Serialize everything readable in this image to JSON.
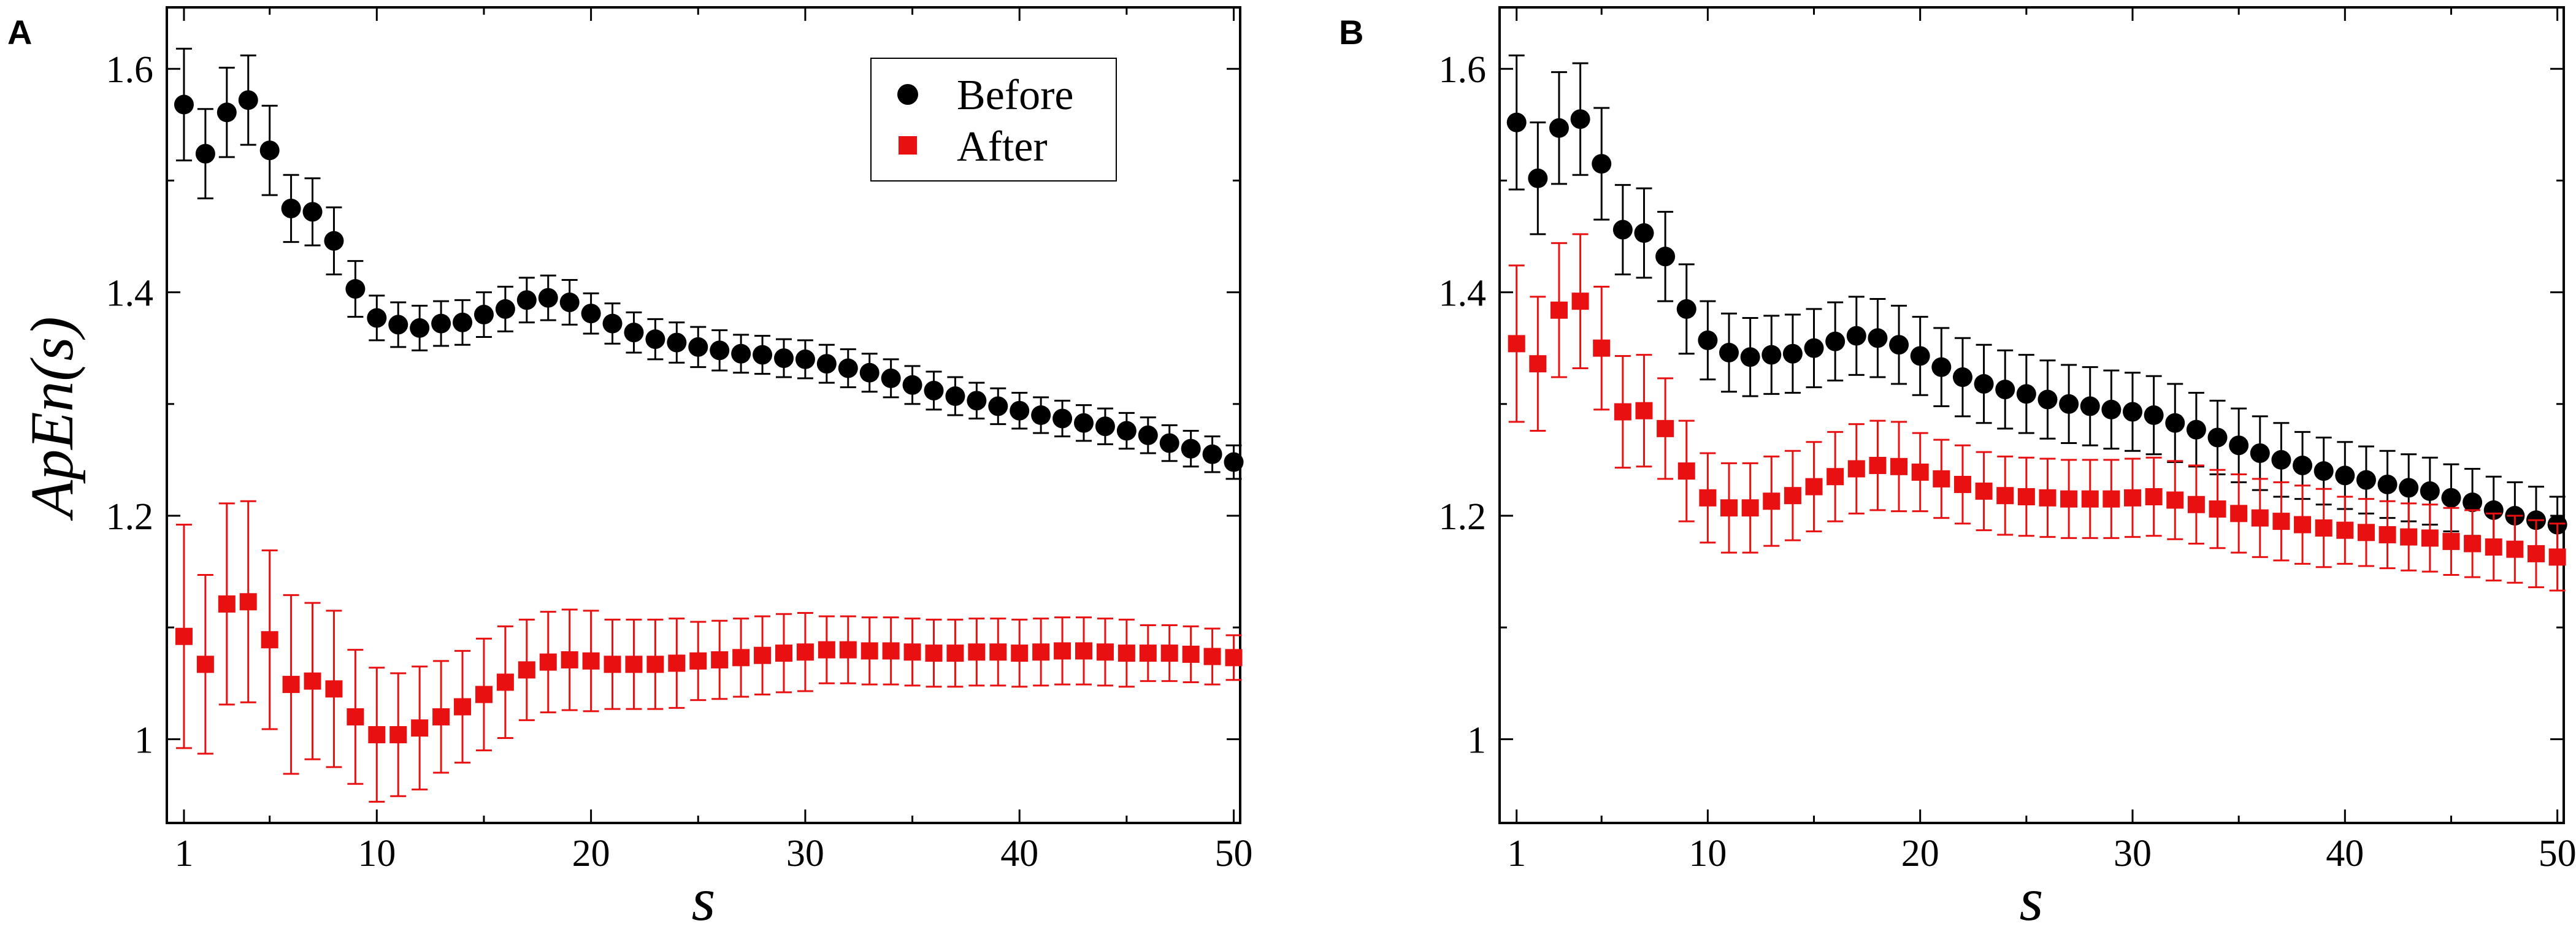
{
  "colors": {
    "before": "#000000",
    "after": "#e81010"
  },
  "chart_data": [
    {
      "panel": "A",
      "type": "scatter",
      "xlabel": "s",
      "ylabel": "ApEn(s)",
      "xlim": [
        0.2,
        50.3
      ],
      "ylim": [
        0.925,
        1.655
      ],
      "xticks": [
        1,
        10,
        20,
        30,
        40,
        50
      ],
      "yticks": [
        1,
        1.2,
        1.4,
        1.6
      ],
      "ytick_labels": [
        "1",
        "1.2",
        "1.4",
        "1.6"
      ],
      "legend": {
        "position": "top-right",
        "entries": [
          "Before",
          "After"
        ]
      },
      "x": [
        1,
        2,
        3,
        4,
        5,
        6,
        7,
        8,
        9,
        10,
        11,
        12,
        13,
        14,
        15,
        16,
        17,
        18,
        19,
        20,
        21,
        22,
        23,
        24,
        25,
        26,
        27,
        28,
        29,
        30,
        31,
        32,
        33,
        34,
        35,
        36,
        37,
        38,
        39,
        40,
        41,
        42,
        43,
        44,
        45,
        46,
        47,
        48,
        49,
        50
      ],
      "series": [
        {
          "name": "Before",
          "marker": "circle",
          "values": [
            1.568,
            1.524,
            1.561,
            1.572,
            1.527,
            1.475,
            1.472,
            1.446,
            1.403,
            1.377,
            1.371,
            1.368,
            1.372,
            1.373,
            1.38,
            1.385,
            1.393,
            1.395,
            1.391,
            1.381,
            1.372,
            1.364,
            1.358,
            1.355,
            1.351,
            1.348,
            1.345,
            1.344,
            1.341,
            1.34,
            1.336,
            1.332,
            1.328,
            1.323,
            1.317,
            1.312,
            1.307,
            1.303,
            1.298,
            1.294,
            1.29,
            1.287,
            1.283,
            1.28,
            1.276,
            1.272,
            1.265,
            1.26,
            1.255,
            1.248
          ],
          "errors": [
            0.05,
            0.04,
            0.04,
            0.04,
            0.04,
            0.03,
            0.03,
            0.03,
            0.025,
            0.02,
            0.02,
            0.02,
            0.02,
            0.02,
            0.02,
            0.02,
            0.02,
            0.02,
            0.02,
            0.018,
            0.018,
            0.018,
            0.018,
            0.018,
            0.018,
            0.018,
            0.017,
            0.017,
            0.017,
            0.017,
            0.017,
            0.017,
            0.017,
            0.017,
            0.017,
            0.017,
            0.017,
            0.016,
            0.016,
            0.016,
            0.016,
            0.016,
            0.016,
            0.016,
            0.016,
            0.016,
            0.016,
            0.016,
            0.016,
            0.015
          ]
        },
        {
          "name": "After",
          "marker": "square",
          "values": [
            1.092,
            1.067,
            1.121,
            1.123,
            1.089,
            1.049,
            1.052,
            1.045,
            1.02,
            1.004,
            1.004,
            1.01,
            1.02,
            1.029,
            1.04,
            1.051,
            1.062,
            1.069,
            1.071,
            1.07,
            1.067,
            1.067,
            1.067,
            1.068,
            1.07,
            1.071,
            1.073,
            1.075,
            1.077,
            1.078,
            1.08,
            1.08,
            1.079,
            1.079,
            1.078,
            1.077,
            1.077,
            1.078,
            1.078,
            1.077,
            1.078,
            1.079,
            1.079,
            1.078,
            1.077,
            1.077,
            1.077,
            1.076,
            1.074,
            1.073
          ],
          "errors": [
            0.1,
            0.08,
            0.09,
            0.09,
            0.08,
            0.08,
            0.07,
            0.07,
            0.06,
            0.06,
            0.055,
            0.055,
            0.05,
            0.05,
            0.05,
            0.05,
            0.045,
            0.045,
            0.045,
            0.045,
            0.04,
            0.04,
            0.04,
            0.04,
            0.035,
            0.035,
            0.035,
            0.035,
            0.035,
            0.035,
            0.03,
            0.03,
            0.03,
            0.03,
            0.03,
            0.03,
            0.03,
            0.03,
            0.03,
            0.03,
            0.03,
            0.03,
            0.03,
            0.03,
            0.03,
            0.025,
            0.025,
            0.025,
            0.025,
            0.02
          ]
        }
      ]
    },
    {
      "panel": "B",
      "type": "scatter",
      "xlabel": "s",
      "ylabel": "",
      "xlim": [
        0.2,
        50.3
      ],
      "ylim": [
        0.925,
        1.655
      ],
      "xticks": [
        1,
        10,
        20,
        30,
        40,
        50
      ],
      "yticks": [
        1,
        1.2,
        1.4,
        1.6
      ],
      "ytick_labels": [
        "1",
        "1.2",
        "1.4",
        "1.6"
      ],
      "legend": null,
      "x": [
        1,
        2,
        3,
        4,
        5,
        6,
        7,
        8,
        9,
        10,
        11,
        12,
        13,
        14,
        15,
        16,
        17,
        18,
        19,
        20,
        21,
        22,
        23,
        24,
        25,
        26,
        27,
        28,
        29,
        30,
        31,
        32,
        33,
        34,
        35,
        36,
        37,
        38,
        39,
        40,
        41,
        42,
        43,
        44,
        45,
        46,
        47,
        48,
        49,
        50
      ],
      "series": [
        {
          "name": "Before",
          "marker": "circle",
          "values": [
            1.552,
            1.502,
            1.547,
            1.555,
            1.515,
            1.456,
            1.453,
            1.432,
            1.385,
            1.357,
            1.346,
            1.342,
            1.344,
            1.345,
            1.35,
            1.356,
            1.361,
            1.359,
            1.353,
            1.343,
            1.333,
            1.324,
            1.318,
            1.313,
            1.309,
            1.304,
            1.3,
            1.298,
            1.295,
            1.293,
            1.29,
            1.283,
            1.277,
            1.27,
            1.263,
            1.256,
            1.25,
            1.245,
            1.24,
            1.236,
            1.232,
            1.228,
            1.225,
            1.222,
            1.216,
            1.212,
            1.205,
            1.2,
            1.196,
            1.192
          ],
          "errors": [
            0.06,
            0.05,
            0.05,
            0.05,
            0.05,
            0.04,
            0.04,
            0.04,
            0.04,
            0.035,
            0.035,
            0.035,
            0.035,
            0.035,
            0.035,
            0.035,
            0.035,
            0.035,
            0.035,
            0.035,
            0.035,
            0.035,
            0.035,
            0.035,
            0.035,
            0.035,
            0.035,
            0.035,
            0.035,
            0.035,
            0.035,
            0.035,
            0.033,
            0.033,
            0.033,
            0.033,
            0.033,
            0.03,
            0.03,
            0.03,
            0.03,
            0.03,
            0.03,
            0.03,
            0.03,
            0.03,
            0.03,
            0.03,
            0.03,
            0.025
          ]
        },
        {
          "name": "After",
          "marker": "square",
          "values": [
            1.354,
            1.336,
            1.384,
            1.392,
            1.35,
            1.293,
            1.294,
            1.278,
            1.24,
            1.216,
            1.207,
            1.207,
            1.213,
            1.218,
            1.226,
            1.235,
            1.242,
            1.245,
            1.244,
            1.239,
            1.233,
            1.228,
            1.222,
            1.218,
            1.217,
            1.216,
            1.215,
            1.215,
            1.215,
            1.216,
            1.217,
            1.214,
            1.21,
            1.206,
            1.202,
            1.198,
            1.195,
            1.192,
            1.189,
            1.187,
            1.185,
            1.183,
            1.181,
            1.18,
            1.177,
            1.175,
            1.172,
            1.17,
            1.166,
            1.163
          ],
          "errors": [
            0.07,
            0.06,
            0.06,
            0.06,
            0.055,
            0.05,
            0.05,
            0.045,
            0.045,
            0.04,
            0.04,
            0.04,
            0.04,
            0.04,
            0.04,
            0.04,
            0.04,
            0.04,
            0.04,
            0.035,
            0.035,
            0.035,
            0.035,
            0.035,
            0.035,
            0.035,
            0.035,
            0.035,
            0.035,
            0.035,
            0.035,
            0.035,
            0.035,
            0.035,
            0.035,
            0.035,
            0.035,
            0.035,
            0.035,
            0.03,
            0.03,
            0.03,
            0.03,
            0.03,
            0.03,
            0.03,
            0.03,
            0.03,
            0.03,
            0.03
          ]
        }
      ]
    }
  ]
}
